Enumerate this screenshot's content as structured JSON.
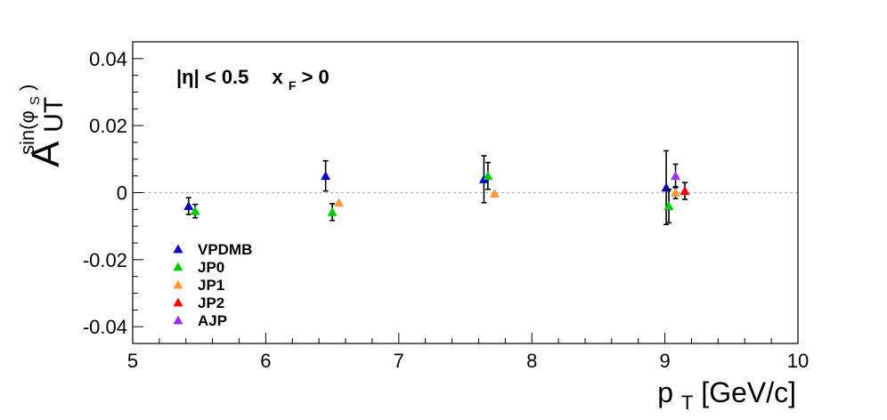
{
  "chart_data": {
    "type": "scatter",
    "xlabel": {
      "main": "p",
      "sub": "T",
      "rest": " [GeV/c]"
    },
    "ylabel": {
      "main": "A",
      "sub": "UT",
      "sup_main": "sin(φ",
      "sup_sub": "S",
      "sup_close": ")"
    },
    "xlim": [
      5,
      10
    ],
    "ylim": [
      -0.045,
      0.045
    ],
    "xticks": [
      {
        "v": 5,
        "label": "5"
      },
      {
        "v": 6,
        "label": "6"
      },
      {
        "v": 7,
        "label": "7"
      },
      {
        "v": 8,
        "label": "8"
      },
      {
        "v": 9,
        "label": "9"
      },
      {
        "v": 10,
        "label": "10"
      }
    ],
    "yticks": [
      {
        "v": -0.04,
        "label": "-0.04"
      },
      {
        "v": -0.02,
        "label": "-0.02"
      },
      {
        "v": 0,
        "label": "0"
      },
      {
        "v": 0.02,
        "label": "0.02"
      },
      {
        "v": 0.04,
        "label": "0.04"
      }
    ],
    "zero_line": true,
    "legend_position": "bottom-left",
    "annotation": {
      "eta": "|η| < 0.5",
      "xf_main": "x",
      "xf_sub": "F",
      "xf_rest": " > 0"
    },
    "series": [
      {
        "name": "VPDMB",
        "color": "#0000cc",
        "points": [
          {
            "x": 5.42,
            "y": -0.004,
            "err": 0.0025
          },
          {
            "x": 6.45,
            "y": 0.005,
            "err": 0.0045
          },
          {
            "x": 7.64,
            "y": 0.004,
            "err": 0.007
          },
          {
            "x": 9.01,
            "y": 0.0015,
            "err": 0.011
          }
        ]
      },
      {
        "name": "JP0",
        "color": "#00cc00",
        "points": [
          {
            "x": 5.47,
            "y": -0.0055,
            "err": 0.002
          },
          {
            "x": 6.5,
            "y": -0.0058,
            "err": 0.0025
          },
          {
            "x": 7.67,
            "y": 0.005,
            "err": 0.004
          },
          {
            "x": 9.03,
            "y": -0.004,
            "err": 0.005
          }
        ]
      },
      {
        "name": "JP1",
        "color": "#ff9933",
        "points": [
          {
            "x": 6.55,
            "y": -0.003,
            "err": 0.0
          },
          {
            "x": 7.72,
            "y": -0.0003,
            "err": 0.0
          },
          {
            "x": 9.08,
            "y": 0.0,
            "err": 0.0018
          }
        ]
      },
      {
        "name": "JP2",
        "color": "#ff0000",
        "points": [
          {
            "x": 9.15,
            "y": 0.0005,
            "err": 0.0025
          }
        ]
      },
      {
        "name": "AJP",
        "color": "#9933ff",
        "points": [
          {
            "x": 9.08,
            "y": 0.005,
            "err": 0.0035
          }
        ]
      }
    ]
  }
}
